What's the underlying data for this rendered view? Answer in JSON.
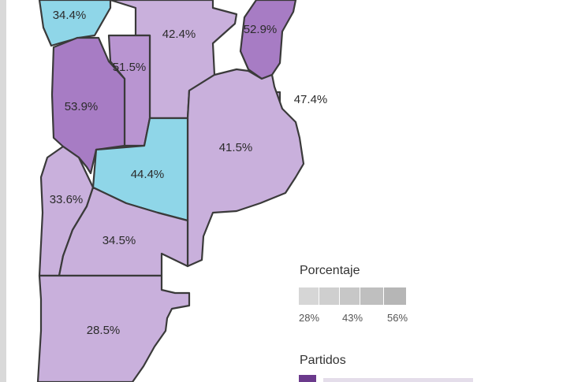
{
  "colors": {
    "cyan": "#8fd6e8",
    "lilac_light": "#c9b0dc",
    "lilac_mid": "#b995d1",
    "purple_dark": "#a77cc4",
    "legend_swatch": "#6b3a8c"
  },
  "regions": [
    {
      "id": "r-34-4a",
      "label": "34.4%",
      "color": "cyan"
    },
    {
      "id": "r-42-4",
      "label": "42.4%",
      "color": "lilac_light"
    },
    {
      "id": "r-52-9",
      "label": "52.9%",
      "color": "purple_dark"
    },
    {
      "id": "r-51-5",
      "label": "51.5%",
      "color": "lilac_mid"
    },
    {
      "id": "r-47-4",
      "label": "47.4%",
      "color": "lilac_light"
    },
    {
      "id": "r-53-9",
      "label": "53.9%",
      "color": "purple_dark"
    },
    {
      "id": "r-41-5",
      "label": "41.5%",
      "color": "lilac_light"
    },
    {
      "id": "r-44-4",
      "label": "44.4%",
      "color": "cyan"
    },
    {
      "id": "r-33-6",
      "label": "33.6%",
      "color": "lilac_light"
    },
    {
      "id": "r-34-5",
      "label": "34.5%",
      "color": "lilac_light"
    },
    {
      "id": "r-28-5",
      "label": "28.5%",
      "color": "lilac_light"
    }
  ],
  "legend": {
    "percent_title": "Porcentaje",
    "ticks": [
      "28%",
      "43%",
      "56%"
    ],
    "parties_title": "Partidos"
  }
}
